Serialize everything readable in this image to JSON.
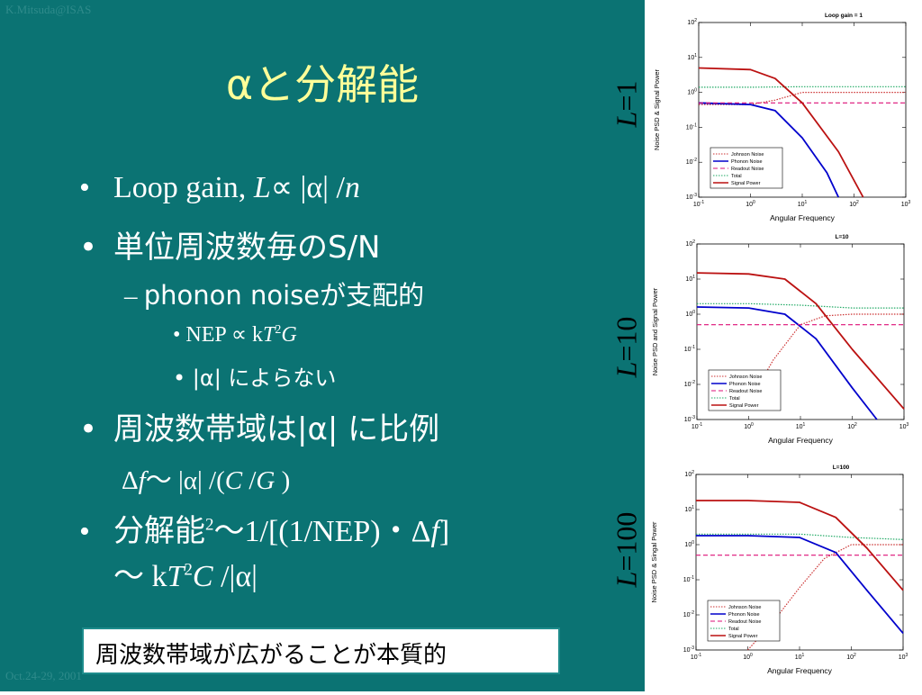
{
  "header": {
    "author": "K.Mitsuda@ISAS",
    "date": "Oct.24-29, 2001"
  },
  "title": "αと分解能",
  "bullets": {
    "b1": {
      "bullet": "•",
      "text": "Loop gain,",
      "L": "L",
      "prop": "∝ |α| /",
      "n": "n"
    },
    "b2": {
      "bullet": "•",
      "text": "単位周波数毎のS/N"
    },
    "b2_sub": {
      "dash": "–",
      "text": "phonon noiseが支配的"
    },
    "b2_subsub": [
      {
        "bullet": "•",
        "pre": "NEP ∝ k",
        "T": "T",
        "sup": "2",
        "G": "G"
      },
      {
        "bullet": "•",
        "text": "|α| によらない"
      }
    ],
    "b3": {
      "bullet": "•",
      "text": "周波数帯域は|α| に比例"
    },
    "b3_formula": {
      "delta": "Δ",
      "f": "f",
      "mid": "〜 |α| /(",
      "C": "C",
      "slash": " /",
      "G": "G",
      "close": " )"
    },
    "b4": {
      "bullet": "•",
      "pre": "分解能",
      "sup": "2",
      "mid": "〜1/[(1/NEP)・Δ",
      "f": "f",
      "close": "]"
    },
    "b4_cont": {
      "pre": "〜 k",
      "T": "T",
      "sup": "2",
      "C": "C",
      "post": " /|α|"
    }
  },
  "callout": "周波数帯域が広がることが本質的",
  "side_labels": [
    {
      "L": "L",
      "value": "=1"
    },
    {
      "L": "L",
      "value": "=10"
    },
    {
      "L": "L",
      "value": "=100"
    }
  ],
  "chart_data": [
    {
      "type": "line",
      "title": "Loop gain = 1",
      "xlabel": "Angular Frequency",
      "ylabel": "Noise PSD & Signal Power",
      "x_scale": "log",
      "y_scale": "log",
      "xlim": [
        0.1,
        1000
      ],
      "ylim": [
        0.001,
        100
      ],
      "x_ticks": [
        "10-1",
        "100",
        "101",
        "102",
        "103"
      ],
      "y_ticks": [
        "10-3",
        "10-2",
        "10-1",
        "100",
        "101",
        "102"
      ],
      "legend_position": "bottom-left",
      "series": [
        {
          "name": "Johnson Noise",
          "color": "#cc3333",
          "dash": "dotted",
          "x": [
            0.1,
            1,
            3,
            10,
            100,
            1000
          ],
          "y": [
            0.45,
            0.45,
            0.6,
            1,
            1,
            1
          ]
        },
        {
          "name": "Phonon Noise",
          "color": "#0000cc",
          "dash": "solid",
          "x": [
            0.1,
            1,
            3,
            10,
            30,
            50
          ],
          "y": [
            0.5,
            0.45,
            0.3,
            0.05,
            0.005,
            0.001
          ]
        },
        {
          "name": "Readout Noise",
          "color": "#dd1177",
          "dash": "dashed",
          "x": [
            0.1,
            1000
          ],
          "y": [
            0.5,
            0.5
          ]
        },
        {
          "name": "Total",
          "color": "#22aa66",
          "dash": "dotted",
          "x": [
            0.1,
            1,
            10,
            100,
            1000
          ],
          "y": [
            1.4,
            1.4,
            1.45,
            1.45,
            1.45
          ]
        },
        {
          "name": "Signal Power",
          "color": "#bb1111",
          "dash": "solid",
          "x": [
            0.1,
            1,
            3,
            10,
            50,
            150
          ],
          "y": [
            5,
            4.5,
            2.5,
            0.5,
            0.02,
            0.001
          ]
        }
      ]
    },
    {
      "type": "line",
      "title": "L=10",
      "xlabel": "Angular Frequency",
      "ylabel": "Noise PSD and Signal Power",
      "x_scale": "log",
      "y_scale": "log",
      "xlim": [
        0.1,
        1000
      ],
      "ylim": [
        0.001,
        100
      ],
      "x_ticks": [
        "10-1",
        "100",
        "101",
        "102",
        "103"
      ],
      "y_ticks": [
        "10-3",
        "10-2",
        "10-1",
        "100",
        "101",
        "102"
      ],
      "legend_position": "bottom-left",
      "series": [
        {
          "name": "Johnson Noise",
          "color": "#cc3333",
          "dash": "dotted",
          "x": [
            1,
            3,
            10,
            30,
            100,
            1000
          ],
          "y": [
            0.003,
            0.05,
            0.5,
            0.9,
            1,
            1
          ]
        },
        {
          "name": "Phonon Noise",
          "color": "#0000cc",
          "dash": "solid",
          "x": [
            0.1,
            1,
            5,
            20,
            100,
            300
          ],
          "y": [
            1.6,
            1.5,
            1,
            0.2,
            0.008,
            0.001
          ]
        },
        {
          "name": "Readout Noise",
          "color": "#dd1177",
          "dash": "dashed",
          "x": [
            0.1,
            1000
          ],
          "y": [
            0.5,
            0.5
          ]
        },
        {
          "name": "Total",
          "color": "#22aa66",
          "dash": "dotted",
          "x": [
            0.1,
            1,
            10,
            100,
            1000
          ],
          "y": [
            2,
            2,
            1.8,
            1.5,
            1.5
          ]
        },
        {
          "name": "Signal Power",
          "color": "#bb1111",
          "dash": "solid",
          "x": [
            0.1,
            1,
            5,
            20,
            100,
            1000
          ],
          "y": [
            15,
            14,
            10,
            2,
            0.1,
            0.002
          ]
        }
      ]
    },
    {
      "type": "line",
      "title": "L=100",
      "xlabel": "Angular Frequency",
      "ylabel": "Noise PSD & Singal Power",
      "x_scale": "log",
      "y_scale": "log",
      "xlim": [
        0.1,
        1000
      ],
      "ylim": [
        0.001,
        100
      ],
      "x_ticks": [
        "10-1",
        "100",
        "101",
        "102",
        "103"
      ],
      "y_ticks": [
        "10-3",
        "10-2",
        "10-1",
        "100",
        "101",
        "102"
      ],
      "legend_position": "bottom-left",
      "series": [
        {
          "name": "Johnson Noise",
          "color": "#cc3333",
          "dash": "dotted",
          "x": [
            1,
            3,
            10,
            30,
            100,
            1000
          ],
          "y": [
            0.001,
            0.006,
            0.06,
            0.4,
            1,
            1
          ]
        },
        {
          "name": "Phonon Noise",
          "color": "#0000cc",
          "dash": "solid",
          "x": [
            0.1,
            1,
            10,
            50,
            200,
            1000
          ],
          "y": [
            1.8,
            1.8,
            1.6,
            0.6,
            0.05,
            0.003
          ]
        },
        {
          "name": "Readout Noise",
          "color": "#dd1177",
          "dash": "dashed",
          "x": [
            0.1,
            1000
          ],
          "y": [
            0.5,
            0.5
          ]
        },
        {
          "name": "Total",
          "color": "#22aa66",
          "dash": "dotted",
          "x": [
            0.1,
            1,
            10,
            100,
            1000
          ],
          "y": [
            2,
            2,
            2,
            1.6,
            1.4
          ]
        },
        {
          "name": "Signal Power",
          "color": "#bb1111",
          "dash": "solid",
          "x": [
            0.1,
            1,
            10,
            50,
            200,
            1000
          ],
          "y": [
            18,
            18,
            16,
            6,
            0.8,
            0.05
          ]
        }
      ]
    }
  ]
}
